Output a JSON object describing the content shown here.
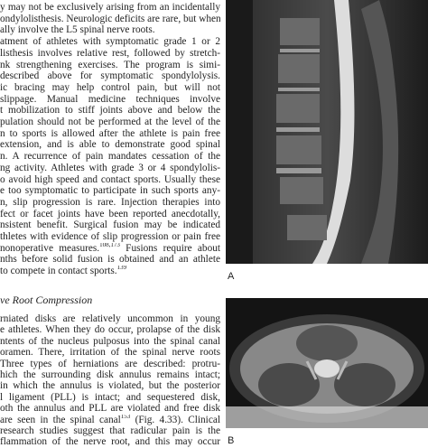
{
  "column": {
    "lines": [
      "y may not be exclusively arising from an incidentally",
      "ondylolisthesis. Neurologic deficits are rare, but when",
      "ally involve the L5 spinal nerve roots.",
      "atment of athletes with symptomatic grade 1 or 2",
      "listhesis involves relative rest, followed by stretch-",
      "nk strengthening exercises. The program is simi-",
      "described above for symptomatic spondylolysis.",
      "ic bracing may help control pain, but will not",
      "slippage. Manual medicine techniques involve",
      "t mobilization to stiff joints above and below the",
      "pulation should not be performed at the level of the",
      "n to sports is allowed after the athlete is pain free",
      "extension, and is able to demonstrate good spinal",
      "n. A recurrence of pain mandates cessation of the",
      "ng activity. Athletes with grade 3 or 4 spondylolis-",
      "o avoid high speed and contact sports. Usually these",
      "e too symptomatic to participate in such sports any-",
      "n, slip progression is rare. Injection therapies into",
      "fect or facet joints have been reported anecdotally,",
      "nsistent benefit. Surgical fusion may be indicated",
      "thletes with evidence of slip progression or pain free",
      [
        {
          "t": "nonoperative measures."
        },
        {
          "sup": "108,173"
        },
        {
          "t": " Fusions require about"
        }
      ],
      "nths before solid fusion is obtained and an athlete",
      [
        {
          "t": "to compete in contact sports."
        },
        {
          "sup": "139"
        }
      ]
    ],
    "heading": "ve Root Compression",
    "lines2": [
      "rniated disks are relatively uncommon in young",
      "e athletes. When they do occur, prolapse of the disk",
      "ntents of the nucleus pulposus into the spinal canal",
      "oramen. There, irritation of the spinal nerve roots",
      "Three types of herniations are described: protru-",
      "hich the surrounding disk annulus remains intact;",
      "in which the annulus is violated, but the posterior",
      "l ligament (PLL) is intact; and sequestered disk,",
      "oth the annulus and PLL are violated and free disk",
      [
        {
          "t": "are seen in the spinal canal"
        },
        {
          "sup": "153"
        },
        {
          "t": " (Fig. 4.33). Clinical"
        }
      ],
      "research studies suggest that radicular pain is the",
      "flammation of the nerve root, and this may occur"
    ]
  },
  "figure": {
    "label_a": "A",
    "label_b": "B"
  }
}
